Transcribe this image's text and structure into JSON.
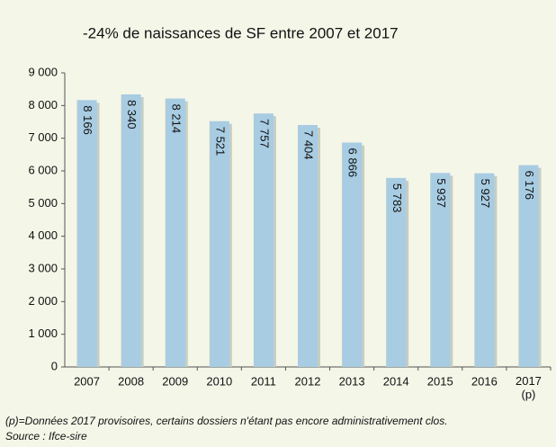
{
  "chart_data": {
    "type": "bar",
    "title": "-24% de naissances de SF entre 2007 et 2017",
    "categories": [
      "2007",
      "2008",
      "2009",
      "2010",
      "2011",
      "2012",
      "2013",
      "2014",
      "2015",
      "2016",
      "2017 (p)"
    ],
    "values": [
      8166,
      8340,
      8214,
      7521,
      7757,
      7404,
      6866,
      5783,
      5937,
      5927,
      6176
    ],
    "value_labels": [
      "8 166",
      "8 340",
      "8 214",
      "7 521",
      "7 757",
      "7 404",
      "6 866",
      "5 783",
      "5 937",
      "5 927",
      "6 176"
    ],
    "color": "#a8cce2",
    "ylim": [
      0,
      9000
    ],
    "yticks": [
      0,
      {
        "value": 1000,
        "label": "1 000"
      },
      {
        "value": 2000,
        "label": "2 000"
      },
      {
        "value": 3000,
        "label": "3 000"
      },
      {
        "value": 4000,
        "label": "4 000"
      },
      {
        "value": 5000,
        "label": "5 000"
      },
      {
        "value": 6000,
        "label": "6 000"
      },
      {
        "value": 7000,
        "label": "7 000"
      },
      {
        "value": 8000,
        "label": "8 000"
      },
      {
        "value": 9000,
        "label": "9 000"
      }
    ],
    "notes": [
      "(p)=Données 2017 provisoires, certains dossiers n'étant pas encore administrativement clos.",
      "Source : Ifce-sire"
    ]
  }
}
